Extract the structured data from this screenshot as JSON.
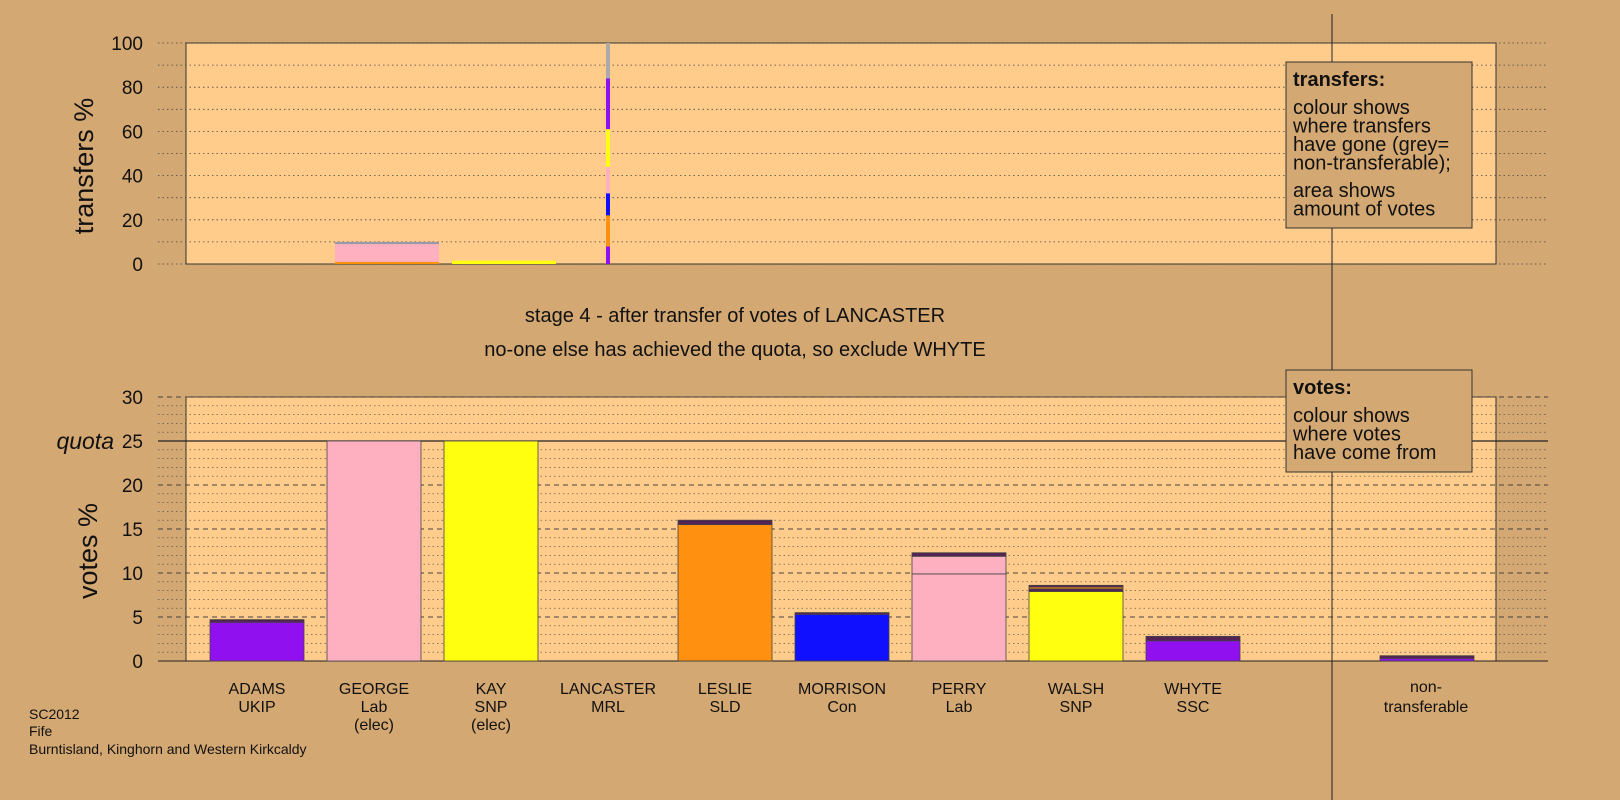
{
  "chart_data": {
    "type": "bar",
    "stage_line1": "stage 4 - after transfer of votes of LANCASTER",
    "stage_line2": "no-one else has achieved the quota, so exclude WHYTE",
    "top_chart": {
      "ylabel": "transfers %",
      "ylim": [
        0,
        100
      ],
      "yticks": [
        0,
        20,
        40,
        60,
        80,
        100
      ],
      "description": {
        "title": "transfers:",
        "lines_a": [
          "colour shows",
          "where transfers",
          "have gone (grey=",
          "non-transferable);"
        ],
        "lines_b": [
          "area shows",
          "amount of votes"
        ]
      },
      "transfers": [
        {
          "candidate": "GEORGE",
          "height": 10,
          "segments": [
            {
              "color": "#ff9010",
              "value": 1
            },
            {
              "color": "#ffb0c0",
              "value": 8
            },
            {
              "color": "#9999aa",
              "value": 1
            }
          ]
        },
        {
          "candidate": "KAY",
          "height": 1.5,
          "segments": [
            {
              "color": "#ffff10",
              "value": 1.5
            }
          ]
        }
      ],
      "source_bar": {
        "candidate": "LANCASTER",
        "segments": [
          {
            "color": "#9010f0",
            "value": 8
          },
          {
            "color": "#ff9010",
            "value": 14
          },
          {
            "color": "#1010ff",
            "value": 10
          },
          {
            "color": "#ffb0c0",
            "value": 12
          },
          {
            "color": "#ffff10",
            "value": 17
          },
          {
            "color": "#9010f0",
            "value": 23
          },
          {
            "color": "#aaaaaa",
            "value": 16
          }
        ]
      }
    },
    "bottom_chart": {
      "ylabel": "votes %",
      "ylim": [
        0,
        30
      ],
      "yticks": [
        0,
        5,
        10,
        15,
        20,
        25,
        30
      ],
      "quota": 25,
      "quota_label": "quota",
      "description": {
        "title": "votes:",
        "lines": [
          "colour shows",
          "where votes",
          "have come from"
        ]
      },
      "candidates": [
        {
          "name": "ADAMS",
          "party": "UKIP",
          "note": "",
          "segments": [
            {
              "color": "#9010f0",
              "value": 4.4
            },
            {
              "color": "#552255",
              "value": 0.3
            }
          ]
        },
        {
          "name": "GEORGE",
          "party": "Lab",
          "note": "(elec)",
          "segments": [
            {
              "color": "#ffb0c0",
              "value": 25
            }
          ]
        },
        {
          "name": "KAY",
          "party": "SNP",
          "note": "(elec)",
          "segments": [
            {
              "color": "#ffff10",
              "value": 25
            }
          ]
        },
        {
          "name": "LANCASTER",
          "party": "MRL",
          "note": "",
          "segments": []
        },
        {
          "name": "LESLIE",
          "party": "SLD",
          "note": "",
          "segments": [
            {
              "color": "#ff9010",
              "value": 15.5
            },
            {
              "color": "#552255",
              "value": 0.5
            }
          ]
        },
        {
          "name": "MORRISON",
          "party": "Con",
          "note": "",
          "segments": [
            {
              "color": "#1010ff",
              "value": 5.3
            },
            {
              "color": "#552255",
              "value": 0.2
            }
          ]
        },
        {
          "name": "PERRY",
          "party": "Lab",
          "note": "",
          "segments": [
            {
              "color": "#ffb0c0",
              "value": 9.9
            },
            {
              "color": "#ffb0c0",
              "value": 2.0
            },
            {
              "color": "#552255",
              "value": 0.4
            }
          ]
        },
        {
          "name": "WALSH",
          "party": "SNP",
          "note": "",
          "segments": [
            {
              "color": "#ffff10",
              "value": 7.9
            },
            {
              "color": "#552255",
              "value": 0.3
            },
            {
              "color": "#ff9010",
              "value": 0.2
            },
            {
              "color": "#552255",
              "value": 0.2
            }
          ]
        },
        {
          "name": "WHYTE",
          "party": "SSC",
          "note": "",
          "segments": [
            {
              "color": "#9010f0",
              "value": 2.3
            },
            {
              "color": "#552255",
              "value": 0.5
            }
          ]
        }
      ],
      "non_transferable": {
        "line1": "non-",
        "line2": "transferable",
        "segments": [
          {
            "color": "#9010f0",
            "value": 0.3
          },
          {
            "color": "#552255",
            "value": 0.3
          }
        ]
      }
    }
  },
  "footer": {
    "line1": "SC2012",
    "line2": "Fife",
    "line3": "Burntisland, Kinghorn and Western Kirkcaldy"
  },
  "colors": {
    "background": "#d4a872",
    "plot": "#ffcc8c"
  }
}
